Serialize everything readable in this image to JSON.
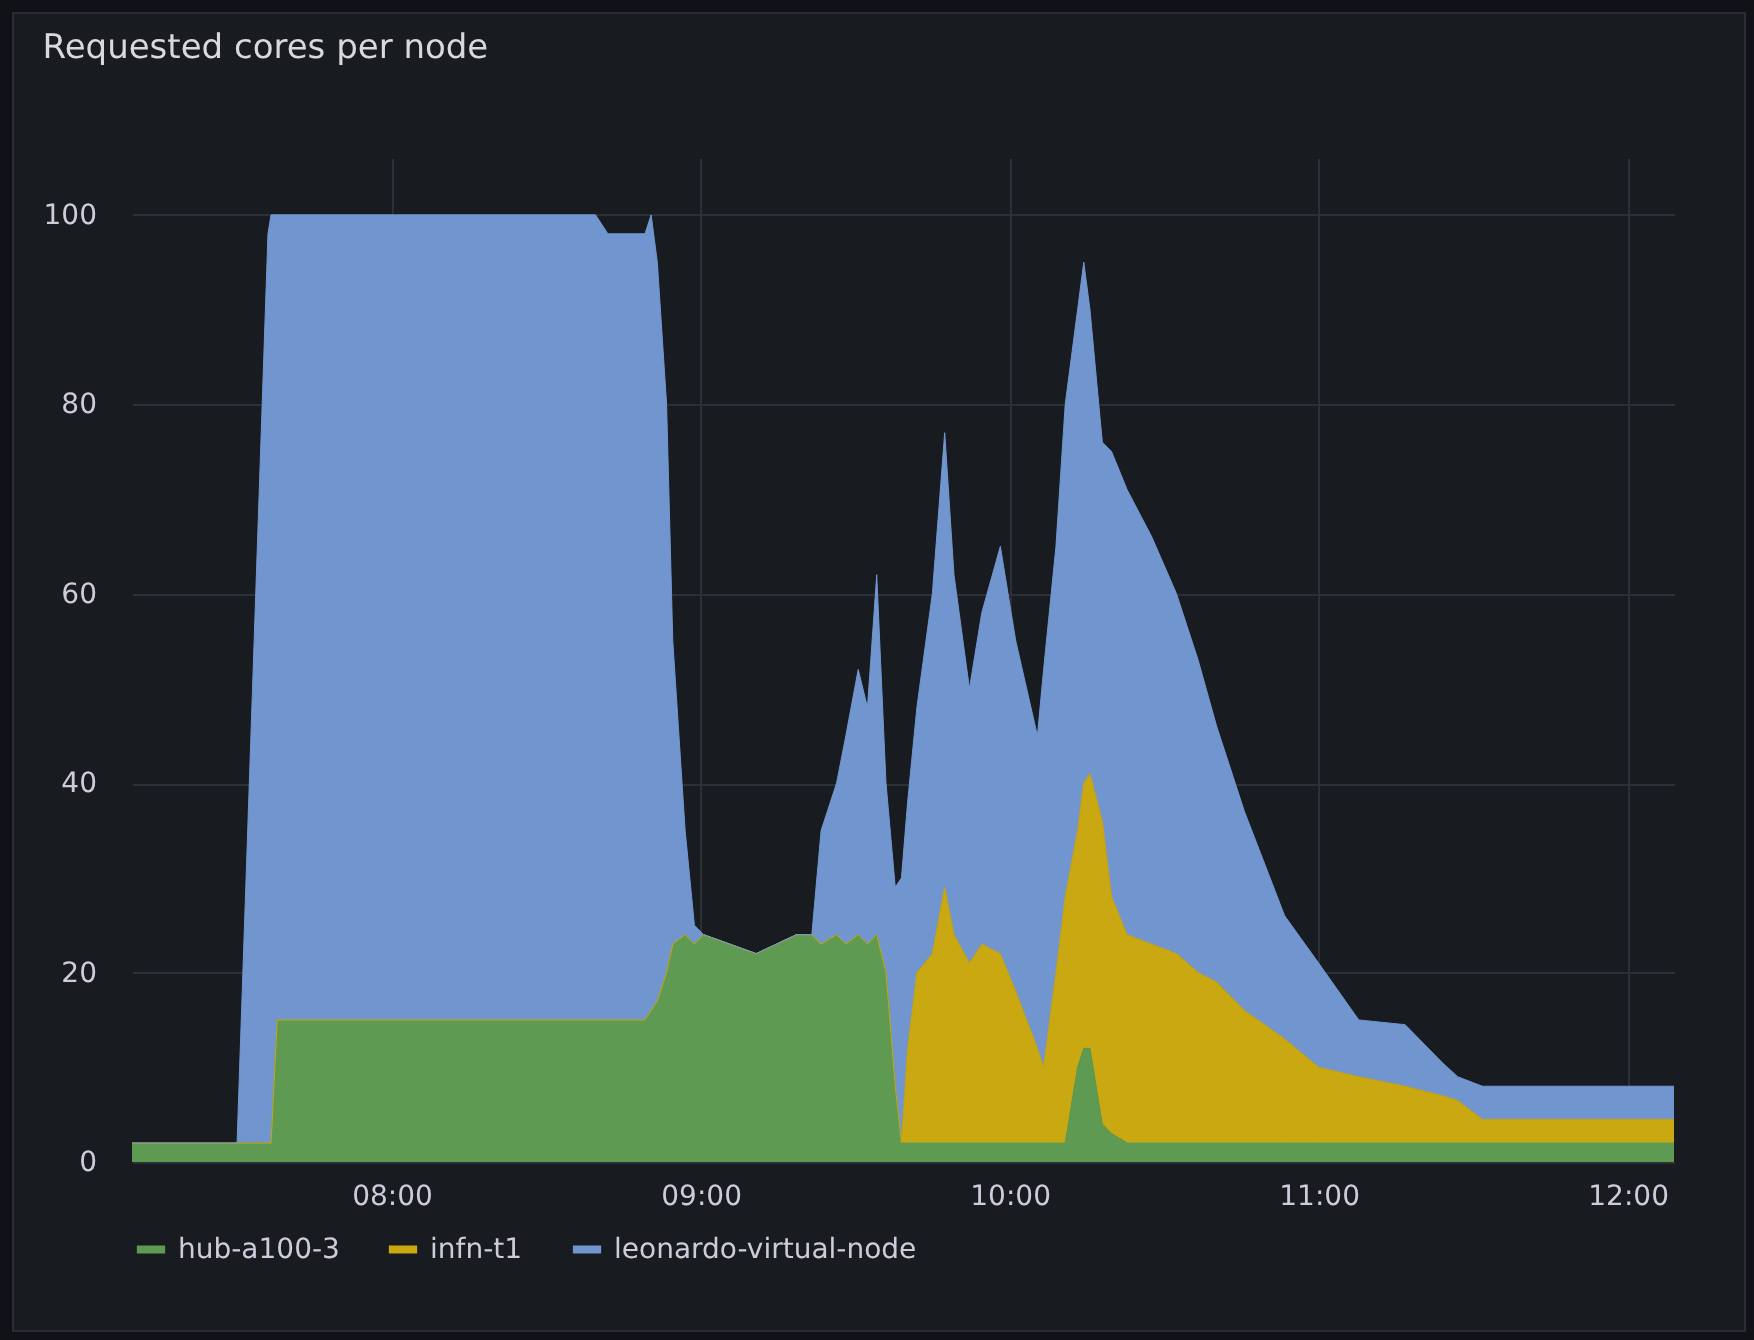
{
  "chart_data": {
    "type": "area",
    "title": "Requested cores per node",
    "stacked": true,
    "grid": true,
    "legend": "bottom left",
    "x": [
      7.16,
      7.5,
      7.55,
      7.6,
      7.61,
      7.63,
      8.66,
      8.7,
      8.82,
      8.84,
      8.86,
      8.89,
      8.91,
      8.95,
      8.98,
      9.01,
      9.18,
      9.31,
      9.36,
      9.39,
      9.44,
      9.47,
      9.51,
      9.54,
      9.57,
      9.6,
      9.63,
      9.65,
      9.67,
      9.7,
      9.75,
      9.79,
      9.82,
      9.87,
      9.91,
      9.97,
      10.02,
      10.09,
      10.11,
      10.15,
      10.18,
      10.22,
      10.24,
      10.26,
      10.3,
      10.33,
      10.38,
      10.46,
      10.54,
      10.61,
      10.67,
      10.76,
      10.89,
      11.0,
      11.13,
      11.28,
      11.4,
      11.45,
      11.53,
      11.81,
      12.15
    ],
    "series": [
      {
        "name": "hub-a100-3",
        "color": "#5f9a52",
        "values": [
          2,
          2,
          2,
          2,
          2,
          15,
          15,
          15,
          15,
          16,
          17,
          20,
          23,
          24,
          23,
          24,
          22,
          24,
          24,
          23,
          24,
          23,
          24,
          23,
          24,
          20,
          8,
          2,
          2,
          2,
          2,
          2,
          2,
          2,
          2,
          2,
          2,
          2,
          2,
          2,
          2,
          10,
          12,
          12,
          4,
          3,
          2,
          2,
          2,
          2,
          2,
          2,
          2,
          2,
          2,
          2,
          2,
          2,
          2,
          2,
          2
        ]
      },
      {
        "name": "infn-t1",
        "color": "#c9a812",
        "values": [
          0,
          0,
          0,
          0,
          0,
          0,
          0,
          0,
          0,
          0,
          0,
          0,
          0,
          0,
          0,
          0,
          0,
          0,
          0,
          0,
          0,
          0,
          0,
          0,
          0,
          0,
          0,
          0,
          10,
          18,
          20,
          27,
          22,
          19,
          21,
          20,
          16,
          10,
          8,
          18,
          26,
          25,
          28,
          29,
          32,
          25,
          22,
          21,
          20,
          18,
          17,
          14,
          11,
          8,
          7,
          6,
          5,
          4.5,
          2.5,
          2.5,
          2.5
        ]
      },
      {
        "name": "leonardo-virtual-node",
        "color": "#7196cf",
        "values": [
          0,
          0,
          48,
          96,
          98,
          85,
          85,
          83,
          83,
          84,
          78,
          60,
          32,
          11,
          2,
          0,
          0,
          0,
          0,
          12,
          16,
          22,
          28,
          25,
          38,
          20,
          21,
          28,
          26,
          28,
          38,
          48,
          38,
          29,
          35,
          43,
          37,
          33,
          42,
          45,
          52,
          55,
          55,
          49,
          40,
          47,
          47,
          43,
          38,
          33,
          27,
          21,
          13,
          11,
          6,
          6.5,
          3.5,
          2.5,
          3.5,
          3.5,
          3.5
        ]
      }
    ],
    "xlim": [
      7.16,
      12.15
    ],
    "xticks": [
      {
        "value": 8,
        "label": "08:00"
      },
      {
        "value": 9,
        "label": "09:00"
      },
      {
        "value": 10,
        "label": "10:00"
      },
      {
        "value": 11,
        "label": "11:00"
      },
      {
        "value": 12,
        "label": "12:00"
      }
    ],
    "ylim": [
      0,
      106
    ],
    "yticks": [
      0,
      20,
      40,
      60,
      80,
      100
    ]
  }
}
